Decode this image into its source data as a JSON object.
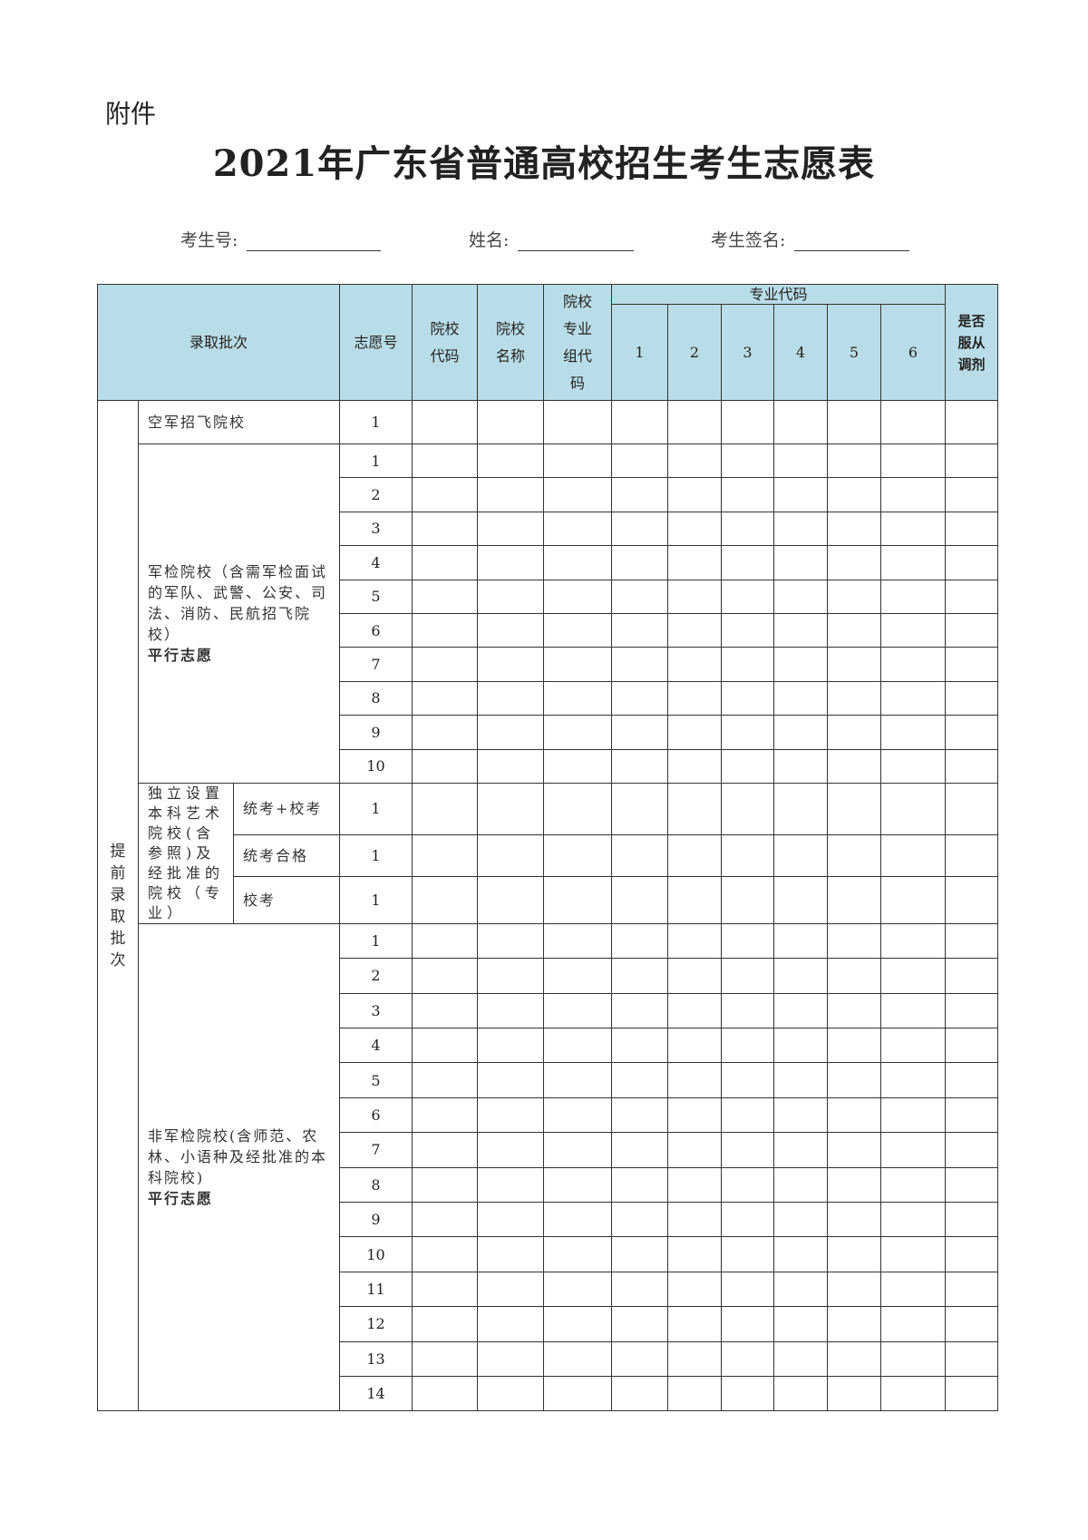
{
  "attachment_label": "附件",
  "title": "2021年广东省普通高校招生考生志愿表",
  "fields": [
    {
      "label": "考生号:",
      "value": ""
    },
    {
      "label": "姓名:",
      "value": ""
    },
    {
      "label": "考生签名:",
      "value": ""
    }
  ],
  "table": {
    "header": {
      "batch": "录取批次",
      "choice_no": "志愿号",
      "school_code": "院校代码",
      "school_name": "院校名称",
      "group_code": "院校专业组代码",
      "major_code": "专业代码",
      "major_cols": [
        "1",
        "2",
        "3",
        "4",
        "5",
        "6"
      ],
      "adjust": "是否服从调剂",
      "header_color": "#b9dde8"
    },
    "batch_name": "提前录取批次",
    "sections": [
      {
        "label": "空军招飞院校",
        "choices": [
          "1"
        ]
      },
      {
        "label": "军检院校（含需军检面试的军队、武警、公安、司法、消防、民航招飞院校）",
        "note": "平行志愿",
        "choices": [
          "1",
          "2",
          "3",
          "4",
          "5",
          "6",
          "7",
          "8",
          "9",
          "10"
        ]
      },
      {
        "label": "独立设置本科艺术院校(含参照)及经批准的院校（专业）",
        "subs": [
          {
            "label": "统考+校考",
            "choice": "1"
          },
          {
            "label": "统考合格",
            "choice": "1"
          },
          {
            "label": "校考",
            "choice": "1"
          }
        ]
      },
      {
        "label": "非军检院校(含师范、农林、小语种及经批准的本科院校)",
        "note": "平行志愿",
        "choices": [
          "1",
          "2",
          "3",
          "4",
          "5",
          "6",
          "7",
          "8",
          "9",
          "10",
          "11",
          "12",
          "13",
          "14"
        ]
      }
    ]
  }
}
